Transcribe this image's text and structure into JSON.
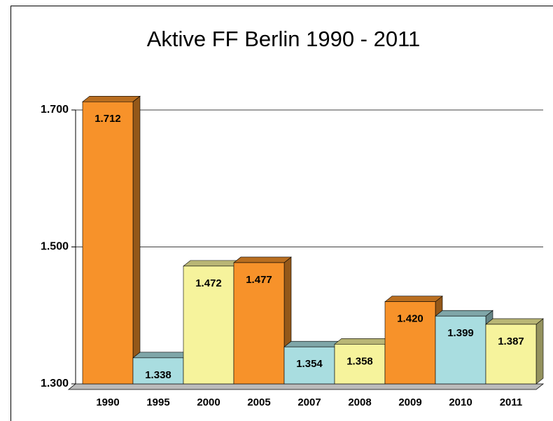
{
  "chart_data": {
    "type": "bar3d",
    "title": "Aktive FF Berlin 1990 - 2011",
    "categories": [
      "1990",
      "1995",
      "2000",
      "2005",
      "2007",
      "2008",
      "2009",
      "2010",
      "2011"
    ],
    "values": [
      1712,
      1338,
      1472,
      1477,
      1354,
      1358,
      1420,
      1399,
      1387
    ],
    "value_labels": [
      "1.712",
      "1.338",
      "1.472",
      "1.477",
      "1.354",
      "1.358",
      "1.420",
      "1.399",
      "1.387"
    ],
    "colors": [
      "#f7922a",
      "#a9dde0",
      "#f6f39c",
      "#f7922a",
      "#a9dde0",
      "#f6f39c",
      "#f7922a",
      "#a9dde0",
      "#f6f39c"
    ],
    "ylim": [
      1300,
      1700
    ],
    "yticks": [
      {
        "value": 1300,
        "label": "1.300"
      },
      {
        "value": 1500,
        "label": "1.500"
      },
      {
        "value": 1700,
        "label": "1.700"
      }
    ],
    "grid": true
  }
}
